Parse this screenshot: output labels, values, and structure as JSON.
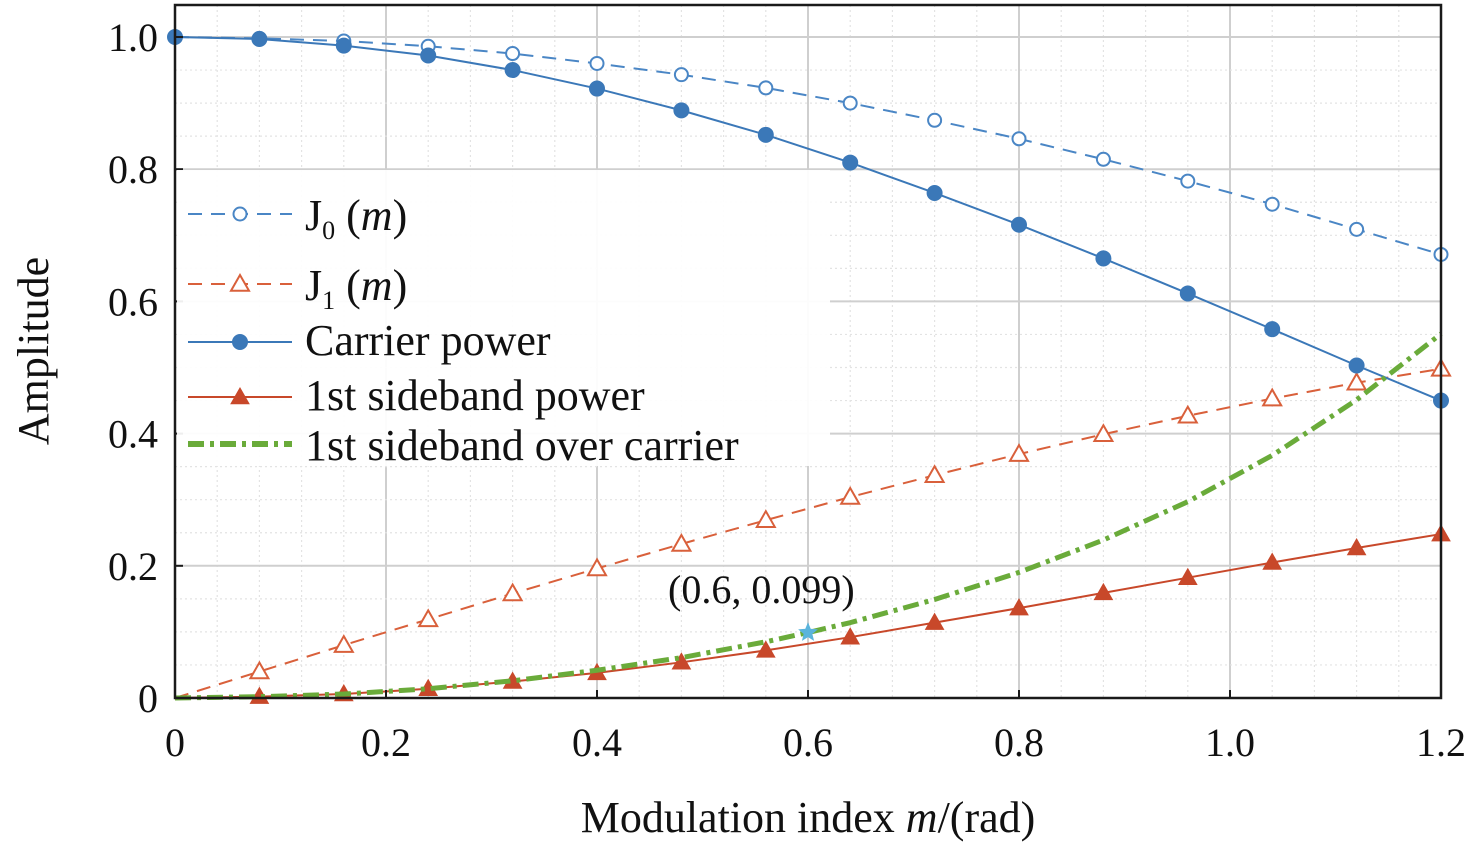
{
  "chart_data": {
    "type": "line",
    "xlabel_main": "Modulation index ",
    "xlabel_var": "m",
    "xlabel_unit": "/(rad)",
    "ylabel": "Amplitude",
    "xlim": [
      0,
      1.2
    ],
    "ylim": [
      0,
      1.0
    ],
    "x_ticks": [
      "0",
      "0.2",
      "0.4",
      "0.6",
      "0.8",
      "1.0",
      "1.2"
    ],
    "y_ticks": [
      "0",
      "0.2",
      "0.4",
      "0.6",
      "0.8",
      "1.0"
    ],
    "x_tick_values": [
      0,
      0.2,
      0.4,
      0.6,
      0.8,
      1.0,
      1.2
    ],
    "y_tick_values": [
      0,
      0.2,
      0.4,
      0.6,
      0.8,
      1.0
    ],
    "grid": true,
    "legend_position": "upper-left",
    "series": [
      {
        "name": "J0 (m)",
        "legend_main": "J",
        "legend_sub": "0",
        "legend_arg": "m",
        "color": "#4a86c5",
        "style": "dashed",
        "marker": "open-circle",
        "x": [
          0,
          0.08,
          0.16,
          0.24,
          0.32,
          0.4,
          0.48,
          0.56,
          0.64,
          0.72,
          0.8,
          0.88,
          0.96,
          1.04,
          1.12,
          1.2
        ],
        "values": [
          1.0,
          0.998,
          0.994,
          0.986,
          0.975,
          0.96,
          0.943,
          0.923,
          0.9,
          0.874,
          0.846,
          0.815,
          0.782,
          0.747,
          0.709,
          0.671
        ]
      },
      {
        "name": "J1 (m)",
        "legend_main": "J",
        "legend_sub": "1",
        "legend_arg": "m",
        "color": "#d9603b",
        "style": "dashed",
        "marker": "open-triangle",
        "x": [
          0,
          0.08,
          0.16,
          0.24,
          0.32,
          0.4,
          0.48,
          0.56,
          0.64,
          0.72,
          0.8,
          0.88,
          0.96,
          1.04,
          1.12,
          1.2
        ],
        "values": [
          0,
          0.04,
          0.08,
          0.119,
          0.158,
          0.196,
          0.233,
          0.269,
          0.304,
          0.337,
          0.369,
          0.399,
          0.427,
          0.453,
          0.477,
          0.498
        ]
      },
      {
        "name": "Carrier power",
        "legend_label": "Carrier power",
        "color": "#3b78b8",
        "style": "solid",
        "marker": "filled-circle",
        "x": [
          0,
          0.08,
          0.16,
          0.24,
          0.32,
          0.4,
          0.48,
          0.56,
          0.64,
          0.72,
          0.8,
          0.88,
          0.96,
          1.04,
          1.12,
          1.2
        ],
        "values": [
          1.0,
          0.997,
          0.987,
          0.972,
          0.95,
          0.922,
          0.889,
          0.852,
          0.81,
          0.764,
          0.716,
          0.665,
          0.612,
          0.558,
          0.503,
          0.45
        ]
      },
      {
        "name": "1st sideband power",
        "legend_label": "1st sideband power",
        "color": "#c8482a",
        "style": "solid",
        "marker": "filled-triangle",
        "x": [
          0,
          0.08,
          0.16,
          0.24,
          0.32,
          0.4,
          0.48,
          0.56,
          0.64,
          0.72,
          0.8,
          0.88,
          0.96,
          1.04,
          1.12,
          1.2
        ],
        "values": [
          0,
          0.002,
          0.006,
          0.014,
          0.025,
          0.038,
          0.054,
          0.072,
          0.092,
          0.114,
          0.136,
          0.159,
          0.182,
          0.205,
          0.227,
          0.248
        ]
      },
      {
        "name": "1st sideband over carrier",
        "legend_label": "1st sideband over carrier",
        "color": "#6aab3a",
        "style": "dashdot",
        "marker": "none",
        "x": [
          0,
          0.08,
          0.16,
          0.24,
          0.32,
          0.4,
          0.48,
          0.56,
          0.6,
          0.64,
          0.72,
          0.8,
          0.88,
          0.96,
          1.04,
          1.12,
          1.2
        ],
        "values": [
          0,
          0.002,
          0.006,
          0.014,
          0.026,
          0.042,
          0.061,
          0.085,
          0.099,
          0.114,
          0.149,
          0.19,
          0.239,
          0.297,
          0.367,
          0.451,
          0.551
        ]
      }
    ],
    "annotation": {
      "text": "(0.6, 0.099)",
      "x": 0.6,
      "y": 0.099,
      "marker": "star",
      "color": "#5ab4dc"
    }
  }
}
